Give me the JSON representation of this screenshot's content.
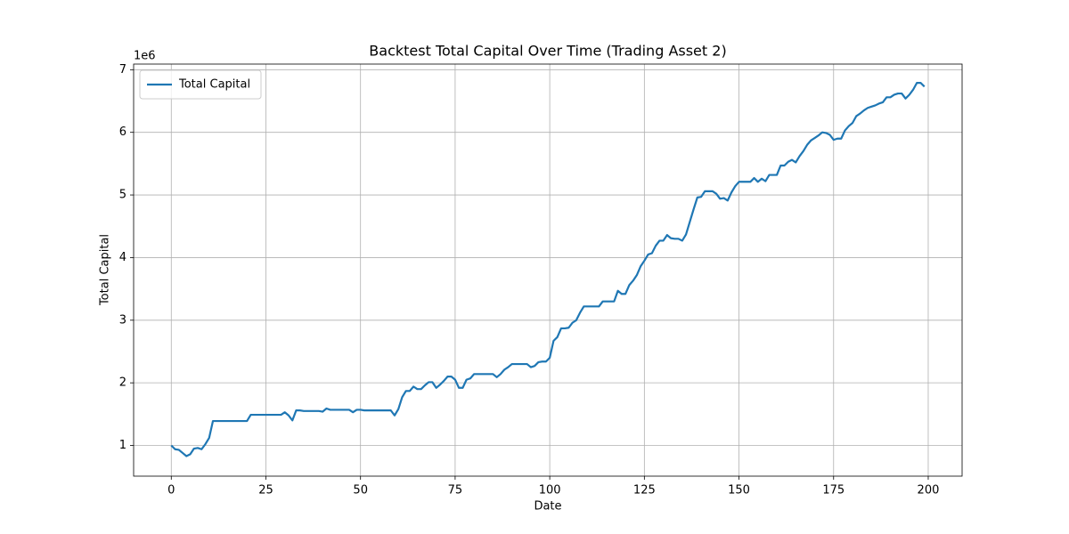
{
  "chart_data": {
    "type": "line",
    "title": "Backtest Total Capital Over Time (Trading Asset 2)",
    "xlabel": "Date",
    "ylabel": "Total Capital",
    "y_offset_label": "1e6",
    "x": [
      0,
      1,
      2,
      3,
      4,
      5,
      6,
      7,
      8,
      9,
      10,
      11,
      12,
      13,
      14,
      15,
      16,
      17,
      18,
      19,
      20,
      21,
      22,
      23,
      24,
      25,
      26,
      27,
      28,
      29,
      30,
      31,
      32,
      33,
      34,
      35,
      36,
      37,
      38,
      39,
      40,
      41,
      42,
      43,
      44,
      45,
      46,
      47,
      48,
      49,
      50,
      51,
      52,
      53,
      54,
      55,
      56,
      57,
      58,
      59,
      60,
      61,
      62,
      63,
      64,
      65,
      66,
      67,
      68,
      69,
      70,
      71,
      72,
      73,
      74,
      75,
      76,
      77,
      78,
      79,
      80,
      81,
      82,
      83,
      84,
      85,
      86,
      87,
      88,
      89,
      90,
      91,
      92,
      93,
      94,
      95,
      96,
      97,
      98,
      99,
      100,
      101,
      102,
      103,
      104,
      105,
      106,
      107,
      108,
      109,
      110,
      111,
      112,
      113,
      114,
      115,
      116,
      117,
      118,
      119,
      120,
      121,
      122,
      123,
      124,
      125,
      126,
      127,
      128,
      129,
      130,
      131,
      132,
      133,
      134,
      135,
      136,
      137,
      138,
      139,
      140,
      141,
      142,
      143,
      144,
      145,
      146,
      147,
      148,
      149,
      150,
      151,
      152,
      153,
      154,
      155,
      156,
      157,
      158,
      159,
      160,
      161,
      162,
      163,
      164,
      165,
      166,
      167,
      168,
      169,
      170,
      171,
      172,
      173,
      174,
      175,
      176,
      177,
      178,
      179,
      180,
      181,
      182,
      183,
      184,
      185,
      186,
      187,
      188,
      189,
      190,
      191,
      192,
      193,
      194,
      195,
      196,
      197,
      198,
      199
    ],
    "series": [
      {
        "name": "Total Capital",
        "color": "#1f77b4",
        "values": [
          1.0,
          0.94,
          0.93,
          0.88,
          0.83,
          0.86,
          0.95,
          0.96,
          0.94,
          1.02,
          1.12,
          1.39,
          1.39,
          1.39,
          1.39,
          1.39,
          1.39,
          1.39,
          1.39,
          1.39,
          1.39,
          1.49,
          1.49,
          1.49,
          1.49,
          1.49,
          1.49,
          1.49,
          1.49,
          1.49,
          1.53,
          1.48,
          1.4,
          1.56,
          1.56,
          1.55,
          1.55,
          1.55,
          1.55,
          1.55,
          1.54,
          1.59,
          1.57,
          1.57,
          1.57,
          1.57,
          1.57,
          1.57,
          1.53,
          1.57,
          1.57,
          1.56,
          1.56,
          1.56,
          1.56,
          1.56,
          1.56,
          1.56,
          1.56,
          1.48,
          1.58,
          1.77,
          1.87,
          1.87,
          1.94,
          1.9,
          1.9,
          1.96,
          2.01,
          2.01,
          1.92,
          1.97,
          2.03,
          2.1,
          2.1,
          2.05,
          1.92,
          1.92,
          2.05,
          2.07,
          2.14,
          2.14,
          2.14,
          2.14,
          2.14,
          2.14,
          2.09,
          2.14,
          2.21,
          2.25,
          2.3,
          2.3,
          2.3,
          2.3,
          2.3,
          2.25,
          2.27,
          2.33,
          2.34,
          2.34,
          2.4,
          2.67,
          2.73,
          2.87,
          2.87,
          2.88,
          2.96,
          3.0,
          3.12,
          3.22,
          3.22,
          3.22,
          3.22,
          3.22,
          3.3,
          3.3,
          3.3,
          3.3,
          3.47,
          3.42,
          3.42,
          3.56,
          3.63,
          3.72,
          3.86,
          3.95,
          4.05,
          4.07,
          4.19,
          4.27,
          4.27,
          4.36,
          4.31,
          4.3,
          4.3,
          4.27,
          4.37,
          4.57,
          4.77,
          4.96,
          4.97,
          5.06,
          5.06,
          5.06,
          5.02,
          4.94,
          4.95,
          4.91,
          5.04,
          5.14,
          5.21,
          5.21,
          5.21,
          5.21,
          5.27,
          5.21,
          5.26,
          5.22,
          5.32,
          5.32,
          5.32,
          5.47,
          5.47,
          5.53,
          5.56,
          5.52,
          5.62,
          5.7,
          5.8,
          5.87,
          5.91,
          5.95,
          6.0,
          5.99,
          5.96,
          5.88,
          5.9,
          5.9,
          6.03,
          6.1,
          6.15,
          6.26,
          6.3,
          6.35,
          6.39,
          6.41,
          6.43,
          6.46,
          6.48,
          6.56,
          6.56,
          6.6,
          6.62,
          6.62,
          6.54,
          6.6,
          6.68,
          6.79,
          6.79,
          6.73
        ]
      }
    ],
    "xlim": [
      -9.95,
      208.95
    ],
    "xticks": [
      0,
      25,
      50,
      75,
      100,
      125,
      150,
      175,
      200
    ],
    "ylim": [
      0.51,
      7.09
    ],
    "yticks": [
      1,
      2,
      3,
      4,
      5,
      6,
      7
    ],
    "grid": true,
    "legend": "upper left"
  }
}
